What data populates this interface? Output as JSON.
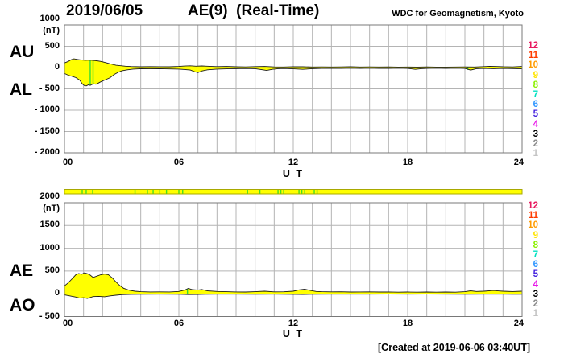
{
  "header": {
    "date": "2019/06/05",
    "title": "AE(9)  (Real-Time)",
    "credit": "WDC for Geomagnetism, Kyoto"
  },
  "footer": {
    "created": "[Created at 2019-06-06 03:40UT]"
  },
  "hour_scale": {
    "labels": [
      "12",
      "11",
      "10",
      "9",
      "8",
      "7",
      "6",
      "5",
      "4",
      "3",
      "2",
      "1"
    ],
    "colors": [
      "#e8195f",
      "#ff3c00",
      "#ff9c00",
      "#ffe400",
      "#8cf000",
      "#00e0c0",
      "#2f96ff",
      "#4422dd",
      "#e819e8",
      "#000000",
      "#8c8c8c",
      "#c4c4c4"
    ]
  },
  "availability_bar": {
    "fill": "#ffff00",
    "border": "#a8a800",
    "tick_color": "#44e022",
    "green_tick_hours": [
      0.93,
      1.14,
      1.48,
      3.7,
      4.35,
      4.65,
      5.0,
      5.35,
      6.0,
      6.2,
      9.6,
      10.25,
      11.2,
      11.35,
      11.5,
      12.3,
      12.45,
      12.6,
      13.1,
      13.25
    ]
  },
  "colors": {
    "fill": "#ffff00",
    "trace": "#1c1c1c",
    "grid": "#b4b4b4",
    "frame": "#787878",
    "green_mark": "#33dd33"
  },
  "chart_data": [
    {
      "type": "area",
      "name": "AU-AL",
      "axis_left_labels": [
        "AU",
        "AL"
      ],
      "unit_label": "(nT)",
      "ylim": [
        -2000,
        1000
      ],
      "yticks": [
        {
          "v": 1000,
          "label": "1000"
        },
        {
          "v": 500,
          "label": "500"
        },
        {
          "v": 0,
          "label": "0"
        },
        {
          "v": -500,
          "label": "- 500"
        },
        {
          "v": -1000,
          "label": "- 1000"
        },
        {
          "v": -1500,
          "label": "- 1500"
        },
        {
          "v": -2000,
          "label": "- 2000"
        }
      ],
      "xlim": [
        0,
        24
      ],
      "xticks": [
        {
          "h": 0,
          "label": "00",
          "anchor": "start"
        },
        {
          "h": 6,
          "label": "06",
          "anchor": "middle"
        },
        {
          "h": 12,
          "label": "12",
          "anchor": "middle"
        },
        {
          "h": 18,
          "label": "18",
          "anchor": "middle"
        },
        {
          "h": 24,
          "label": "24",
          "anchor": "end"
        }
      ],
      "xlabel": "U T",
      "grid": true,
      "series": [
        {
          "name": "AU",
          "points": [
            [
              0,
              110
            ],
            [
              0.2,
              145
            ],
            [
              0.35,
              185
            ],
            [
              0.5,
              205
            ],
            [
              0.7,
              190
            ],
            [
              0.9,
              178
            ],
            [
              1.1,
              172
            ],
            [
              1.3,
              175
            ],
            [
              1.5,
              168
            ],
            [
              1.7,
              160
            ],
            [
              1.9,
              145
            ],
            [
              2.1,
              125
            ],
            [
              2.3,
              100
            ],
            [
              2.5,
              75
            ],
            [
              2.7,
              55
            ],
            [
              2.9,
              45
            ],
            [
              3.2,
              32
            ],
            [
              3.5,
              24
            ],
            [
              4,
              18
            ],
            [
              4.5,
              22
            ],
            [
              5,
              20
            ],
            [
              5.5,
              18
            ],
            [
              6,
              26
            ],
            [
              6.3,
              36
            ],
            [
              6.6,
              42
            ],
            [
              6.9,
              32
            ],
            [
              7.2,
              38
            ],
            [
              7.6,
              30
            ],
            [
              8,
              22
            ],
            [
              8.5,
              26
            ],
            [
              9,
              18
            ],
            [
              9.5,
              15
            ],
            [
              10,
              22
            ],
            [
              10.5,
              26
            ],
            [
              11,
              16
            ],
            [
              11.5,
              13
            ],
            [
              12,
              20
            ],
            [
              12.5,
              18
            ],
            [
              13,
              13
            ],
            [
              13.5,
              16
            ],
            [
              14,
              13
            ],
            [
              14.5,
              16
            ],
            [
              15,
              18
            ],
            [
              15.5,
              13
            ],
            [
              16,
              16
            ],
            [
              16.5,
              13
            ],
            [
              17,
              15
            ],
            [
              17.5,
              11
            ],
            [
              18,
              13
            ],
            [
              18.5,
              11
            ],
            [
              19,
              15
            ],
            [
              19.5,
              12
            ],
            [
              20,
              11
            ],
            [
              20.5,
              13
            ],
            [
              21,
              15
            ],
            [
              21.5,
              13
            ],
            [
              22,
              22
            ],
            [
              22.3,
              30
            ],
            [
              22.7,
              24
            ],
            [
              23,
              19
            ],
            [
              23.5,
              16
            ],
            [
              24,
              26
            ]
          ]
        },
        {
          "name": "AL",
          "points": [
            [
              0,
              -140
            ],
            [
              0.2,
              -180
            ],
            [
              0.4,
              -205
            ],
            [
              0.6,
              -235
            ],
            [
              0.8,
              -295
            ],
            [
              0.95,
              -390
            ],
            [
              1.05,
              -425
            ],
            [
              1.15,
              -430
            ],
            [
              1.25,
              -405
            ],
            [
              1.35,
              -418
            ],
            [
              1.45,
              -395
            ],
            [
              1.55,
              -382
            ],
            [
              1.65,
              -392
            ],
            [
              1.75,
              -372
            ],
            [
              1.85,
              -345
            ],
            [
              2,
              -315
            ],
            [
              2.2,
              -275
            ],
            [
              2.4,
              -235
            ],
            [
              2.6,
              -165
            ],
            [
              2.8,
              -115
            ],
            [
              3,
              -78
            ],
            [
              3.3,
              -52
            ],
            [
              3.6,
              -36
            ],
            [
              4,
              -26
            ],
            [
              4.5,
              -30
            ],
            [
              5,
              -26
            ],
            [
              5.5,
              -32
            ],
            [
              6,
              -36
            ],
            [
              6.3,
              -46
            ],
            [
              6.6,
              -58
            ],
            [
              6.8,
              -92
            ],
            [
              7,
              -118
            ],
            [
              7.2,
              -82
            ],
            [
              7.5,
              -52
            ],
            [
              8,
              -36
            ],
            [
              8.5,
              -30
            ],
            [
              9,
              -26
            ],
            [
              9.5,
              -22
            ],
            [
              10,
              -26
            ],
            [
              10.3,
              -46
            ],
            [
              10.6,
              -68
            ],
            [
              10.9,
              -42
            ],
            [
              11.2,
              -26
            ],
            [
              11.5,
              -22
            ],
            [
              12,
              -30
            ],
            [
              12.5,
              -42
            ],
            [
              13,
              -26
            ],
            [
              13.5,
              -20
            ],
            [
              14,
              -18
            ],
            [
              14.5,
              -20
            ],
            [
              15,
              -16
            ],
            [
              15.5,
              -18
            ],
            [
              16,
              -16
            ],
            [
              16.5,
              -20
            ],
            [
              17,
              -18
            ],
            [
              17.5,
              -16
            ],
            [
              18,
              -20
            ],
            [
              18.4,
              -42
            ],
            [
              18.7,
              -26
            ],
            [
              19,
              -18
            ],
            [
              19.5,
              -16
            ],
            [
              20,
              -18
            ],
            [
              20.5,
              -16
            ],
            [
              21,
              -20
            ],
            [
              21.3,
              -58
            ],
            [
              21.6,
              -26
            ],
            [
              22,
              -20
            ],
            [
              22.5,
              -26
            ],
            [
              23,
              -20
            ],
            [
              23.5,
              -24
            ],
            [
              24,
              -30
            ]
          ]
        }
      ],
      "green_marks": [
        {
          "h": 1.35,
          "v1": 170,
          "v2": -410
        },
        {
          "h": 1.5,
          "v1": 165,
          "v2": -375
        },
        {
          "h": 21.15,
          "v1": 12,
          "v2": -52
        }
      ]
    },
    {
      "type": "area",
      "name": "AE-AO",
      "axis_left_labels": [
        "AE",
        "AO"
      ],
      "unit_label": "(nT)",
      "ylim": [
        -500,
        2000
      ],
      "yticks": [
        {
          "v": 2000,
          "label": "2000"
        },
        {
          "v": 1500,
          "label": "1500"
        },
        {
          "v": 1000,
          "label": "1000"
        },
        {
          "v": 500,
          "label": "500"
        },
        {
          "v": 0,
          "label": "0"
        },
        {
          "v": -500,
          "label": "- 500"
        }
      ],
      "xlim": [
        0,
        24
      ],
      "xticks": [
        {
          "h": 0,
          "label": "00",
          "anchor": "start"
        },
        {
          "h": 6,
          "label": "06",
          "anchor": "middle"
        },
        {
          "h": 12,
          "label": "12",
          "anchor": "middle"
        },
        {
          "h": 18,
          "label": "18",
          "anchor": "middle"
        },
        {
          "h": 24,
          "label": "24",
          "anchor": "end"
        }
      ],
      "xlabel": "U T",
      "grid": true,
      "series": [
        {
          "name": "AE",
          "points": [
            [
              0,
              175
            ],
            [
              0.2,
              240
            ],
            [
              0.4,
              330
            ],
            [
              0.6,
              420
            ],
            [
              0.75,
              445
            ],
            [
              0.9,
              430
            ],
            [
              1.05,
              462
            ],
            [
              1.2,
              442
            ],
            [
              1.35,
              410
            ],
            [
              1.5,
              358
            ],
            [
              1.7,
              388
            ],
            [
              1.9,
              418
            ],
            [
              2.1,
              432
            ],
            [
              2.3,
              420
            ],
            [
              2.5,
              352
            ],
            [
              2.7,
              262
            ],
            [
              2.9,
              182
            ],
            [
              3.1,
              122
            ],
            [
              3.4,
              78
            ],
            [
              3.7,
              56
            ],
            [
              4,
              46
            ],
            [
              4.5,
              40
            ],
            [
              5,
              43
            ],
            [
              5.5,
              40
            ],
            [
              6,
              52
            ],
            [
              6.3,
              82
            ],
            [
              6.5,
              118
            ],
            [
              6.7,
              92
            ],
            [
              7,
              82
            ],
            [
              7.2,
              96
            ],
            [
              7.5,
              66
            ],
            [
              8,
              52
            ],
            [
              8.5,
              46
            ],
            [
              9,
              40
            ],
            [
              9.5,
              38
            ],
            [
              10,
              46
            ],
            [
              10.5,
              56
            ],
            [
              11,
              42
            ],
            [
              11.5,
              44
            ],
            [
              12,
              56
            ],
            [
              12.3,
              86
            ],
            [
              12.6,
              102
            ],
            [
              12.9,
              72
            ],
            [
              13.2,
              52
            ],
            [
              13.5,
              46
            ],
            [
              14,
              42
            ],
            [
              14.5,
              44
            ],
            [
              15,
              38
            ],
            [
              15.5,
              40
            ],
            [
              16,
              43
            ],
            [
              16.5,
              38
            ],
            [
              17,
              40
            ],
            [
              17.5,
              36
            ],
            [
              18,
              38
            ],
            [
              18.5,
              35
            ],
            [
              19,
              38
            ],
            [
              19.5,
              36
            ],
            [
              20,
              38
            ],
            [
              20.5,
              36
            ],
            [
              21,
              46
            ],
            [
              21.3,
              66
            ],
            [
              21.6,
              52
            ],
            [
              22,
              56
            ],
            [
              22.5,
              72
            ],
            [
              22.8,
              62
            ],
            [
              23,
              56
            ],
            [
              23.5,
              50
            ],
            [
              24,
              56
            ]
          ]
        },
        {
          "name": "AO",
          "points": [
            [
              0,
              -25
            ],
            [
              0.3,
              -48
            ],
            [
              0.6,
              -72
            ],
            [
              0.8,
              -96
            ],
            [
              1,
              -86
            ],
            [
              1.2,
              -102
            ],
            [
              1.5,
              -62
            ],
            [
              1.8,
              -56
            ],
            [
              2.1,
              -66
            ],
            [
              2.4,
              -46
            ],
            [
              2.7,
              -32
            ],
            [
              3,
              -20
            ],
            [
              3.5,
              -12
            ],
            [
              4,
              -10
            ],
            [
              5,
              -8
            ],
            [
              6,
              -10
            ],
            [
              6.5,
              -18
            ],
            [
              7,
              -15
            ],
            [
              7.5,
              -10
            ],
            [
              8,
              -8
            ],
            [
              9,
              -8
            ],
            [
              10,
              -10
            ],
            [
              11,
              -8
            ],
            [
              12,
              -12
            ],
            [
              12.5,
              -16
            ],
            [
              13,
              -10
            ],
            [
              14,
              -8
            ],
            [
              15,
              -8
            ],
            [
              16,
              -8
            ],
            [
              17,
              -6
            ],
            [
              18,
              -8
            ],
            [
              19,
              -6
            ],
            [
              20,
              -8
            ],
            [
              21,
              -10
            ],
            [
              22,
              -8
            ],
            [
              23,
              -8
            ],
            [
              24,
              -10
            ]
          ]
        }
      ],
      "green_marks": [
        {
          "h": 6.45,
          "v1": 112,
          "v2": -16
        }
      ]
    }
  ]
}
